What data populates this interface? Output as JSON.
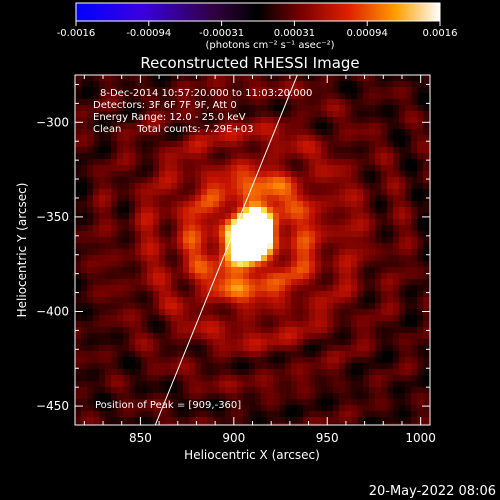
{
  "colorbar": {
    "ticks": [
      "-0.0016",
      "-0.00094",
      "-0.00031",
      "0.00031",
      "0.00094",
      "0.0016"
    ],
    "unit_label": "(photons cm⁻² s⁻¹ asec⁻²)"
  },
  "footer": {
    "timestamp": "20-May-2022 08:06"
  },
  "chart_data": {
    "type": "heatmap",
    "title": "Reconstructed RHESSI Image",
    "xlabel": "Heliocentric X (arcsec)",
    "ylabel": "Heliocentric Y (arcsec)",
    "xlim": [
      815,
      1005
    ],
    "ylim": [
      -460,
      -275
    ],
    "x_ticks": [
      850,
      900,
      950,
      1000
    ],
    "y_ticks": [
      -300,
      -350,
      -400,
      -450
    ],
    "zlim": [
      -0.0016,
      0.0016
    ],
    "annotations": [
      "8-Dec-2014 10:57:20.000 to 11:03:20.000",
      "Detectors: 3F 6F 7F 9F, Att 0",
      "Energy Range: 12.0 - 25.0 keV",
      "Clean     Total counts: 7.29E+03"
    ],
    "peak_label": "Position of Peak = [909,-360]",
    "peak": {
      "x": 909,
      "y": -360,
      "value": 0.0016
    },
    "limb_line": [
      [
        858,
        -460
      ],
      [
        934,
        -275
      ]
    ]
  }
}
